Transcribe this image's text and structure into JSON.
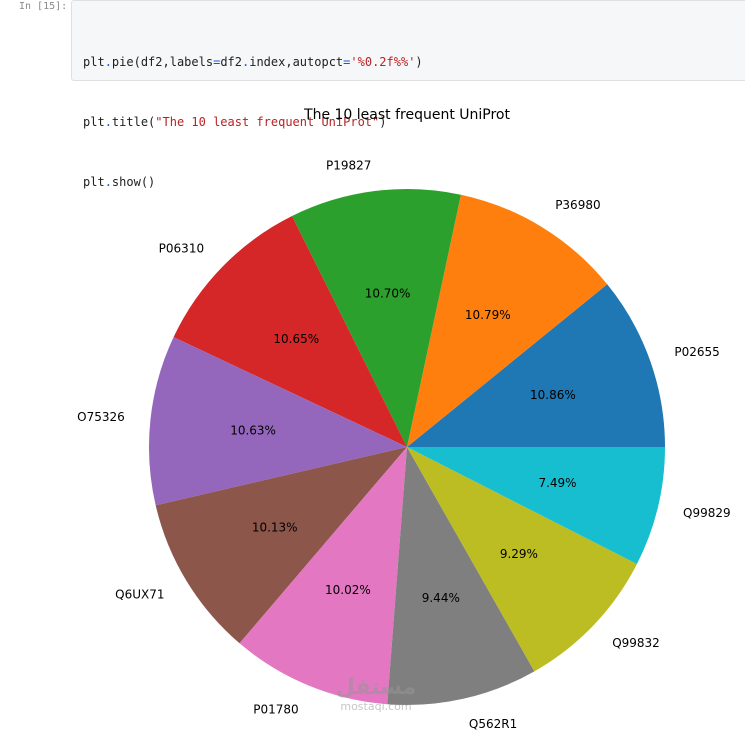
{
  "notebook": {
    "prompt_label": "In [15]:",
    "code": {
      "line1": {
        "t1": "plt",
        "t2": ".",
        "t3": "pie(df2,labels",
        "t4": "=",
        "t5": "df2",
        "t6": ".",
        "t7": "index,autopct",
        "t8": "=",
        "t9": "'%0.2f%%'",
        "t10": ")"
      },
      "line2": {
        "t1": "plt",
        "t2": ".",
        "t3": "title(",
        "t4": "\"The 10 least frequent UniProt\"",
        "t5": ")"
      },
      "line3": {
        "t1": "plt",
        "t2": ".",
        "t3": "show()"
      }
    }
  },
  "chart_data": {
    "type": "pie",
    "title": "The 10 least frequent UniProt",
    "start_angle_deg": 0,
    "direction": "counterclockwise",
    "slices": [
      {
        "label": "P02655",
        "percent": 10.86,
        "percent_text": "10.86%",
        "color": "#1f77b4"
      },
      {
        "label": "P36980",
        "percent": 10.79,
        "percent_text": "10.79%",
        "color": "#ff7f0e"
      },
      {
        "label": "P19827",
        "percent": 10.7,
        "percent_text": "10.70%",
        "color": "#2ca02c"
      },
      {
        "label": "P06310",
        "percent": 10.65,
        "percent_text": "10.65%",
        "color": "#d62728"
      },
      {
        "label": "O75326",
        "percent": 10.63,
        "percent_text": "10.63%",
        "color": "#9467bd"
      },
      {
        "label": "Q6UX71",
        "percent": 10.13,
        "percent_text": "10.13%",
        "color": "#8c564b"
      },
      {
        "label": "P01780",
        "percent": 10.02,
        "percent_text": "10.02%",
        "color": "#e377c2"
      },
      {
        "label": "Q562R1",
        "percent": 9.44,
        "percent_text": "9.44%",
        "color": "#7f7f7f"
      },
      {
        "label": "Q99832",
        "percent": 9.29,
        "percent_text": "9.29%",
        "color": "#bcbd22"
      },
      {
        "label": "Q99829",
        "percent": 7.49,
        "percent_text": "7.49%",
        "color": "#17becf"
      }
    ]
  },
  "watermark": {
    "arabic": "مستقل",
    "latin": "mostaql.com"
  }
}
